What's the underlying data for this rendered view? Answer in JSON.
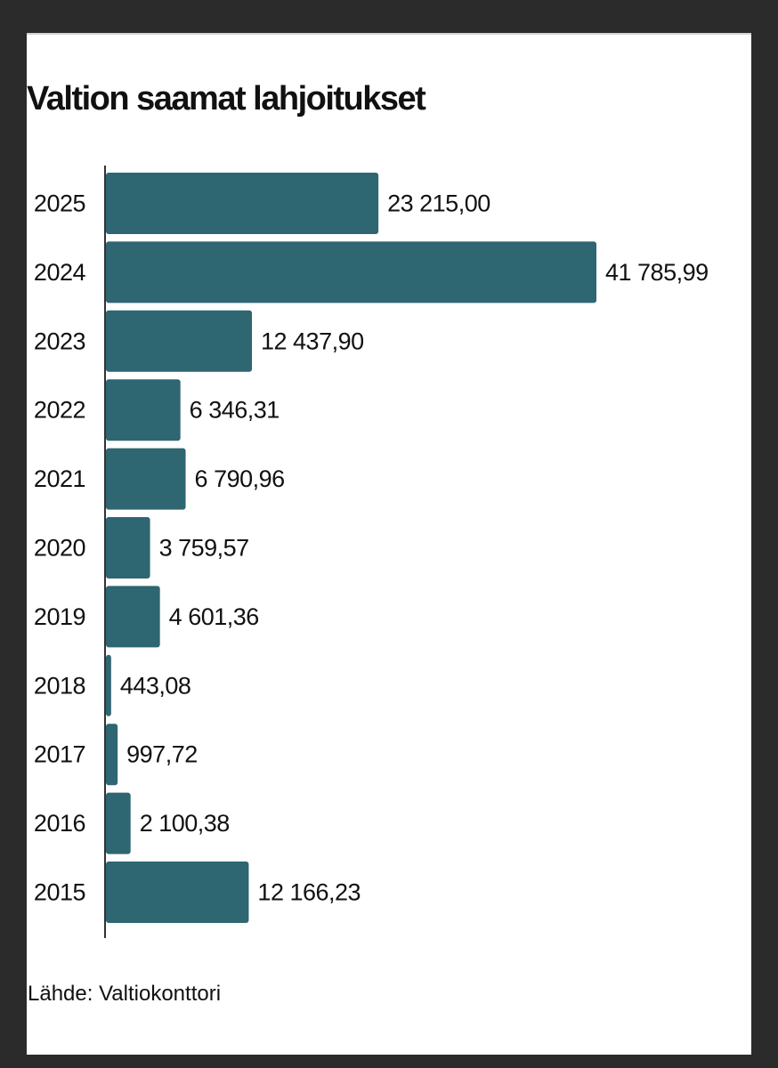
{
  "chart_data": {
    "type": "bar",
    "orientation": "horizontal",
    "title": "Valtion saamat lahjoitukset",
    "source": "Lähde: Valtiokonttori",
    "bar_color": "#2e6672",
    "categories": [
      "2025",
      "2024",
      "2023",
      "2022",
      "2021",
      "2020",
      "2019",
      "2018",
      "2017",
      "2016",
      "2015"
    ],
    "values": [
      23215.0,
      41785.99,
      12437.9,
      6346.31,
      6790.96,
      3759.57,
      4601.36,
      443.08,
      997.72,
      2100.38,
      12166.23
    ],
    "value_labels": [
      "23 215,00",
      "41 785,99",
      "12 437,90",
      "6 346,31",
      "6 790,96",
      "3 759,57",
      "4 601,36",
      "443,08",
      "997,72",
      "2 100,38",
      "12 166,23"
    ],
    "grid": false,
    "legend": "none"
  }
}
